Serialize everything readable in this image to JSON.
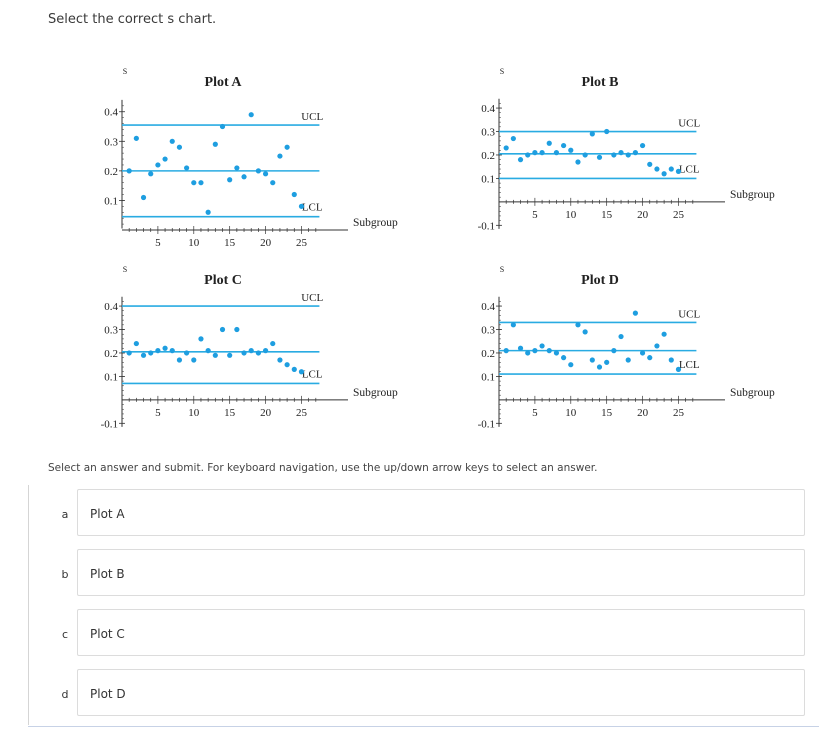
{
  "question": "Select the correct s chart.",
  "instructions": "Select an answer and submit. For keyboard navigation, use the up/down arrow keys to select an answer.",
  "plots": [
    {
      "title": "Plot A",
      "ylabel": "S",
      "xlabel": "Subgroup",
      "ucl_label": "UCL",
      "lcl_label": "LCL",
      "yticks": [
        "0.1",
        "0.2",
        "0.3",
        "0.4"
      ],
      "xticks": [
        "5",
        "10",
        "15",
        "20",
        "25"
      ]
    },
    {
      "title": "Plot B",
      "ylabel": "S",
      "xlabel": "Subgroup",
      "ucl_label": "UCL",
      "lcl_label": "LCL",
      "yticks": [
        "-0.1",
        "0.1",
        "0.2",
        "0.3",
        "0.4"
      ],
      "xticks": [
        "5",
        "10",
        "15",
        "20",
        "25"
      ]
    },
    {
      "title": "Plot C",
      "ylabel": "S",
      "xlabel": "Subgroup",
      "ucl_label": "UCL",
      "lcl_label": "LCL",
      "yticks": [
        "-0.1",
        "0.1",
        "0.2",
        "0.3",
        "0.4"
      ],
      "xticks": [
        "5",
        "10",
        "15",
        "20",
        "25"
      ]
    },
    {
      "title": "Plot D",
      "ylabel": "S",
      "xlabel": "Subgroup",
      "ucl_label": "UCL",
      "lcl_label": "LCL",
      "yticks": [
        "-0.1",
        "0.1",
        "0.2",
        "0.3",
        "0.4"
      ],
      "xticks": [
        "5",
        "10",
        "15",
        "20",
        "25"
      ]
    }
  ],
  "chart_data": [
    {
      "type": "scatter",
      "title": "Plot A",
      "xlabel": "Subgroup",
      "ylabel": "S",
      "x": [
        1,
        2,
        3,
        4,
        5,
        6,
        7,
        8,
        9,
        10,
        11,
        12,
        13,
        14,
        15,
        16,
        17,
        18,
        19,
        20,
        21,
        22,
        23,
        24,
        25
      ],
      "y": [
        0.2,
        0.31,
        0.11,
        0.19,
        0.22,
        0.24,
        0.3,
        0.28,
        0.21,
        0.16,
        0.16,
        0.06,
        0.29,
        0.35,
        0.17,
        0.21,
        0.18,
        0.39,
        0.2,
        0.19,
        0.16,
        0.25,
        0.28,
        0.12,
        0.08
      ],
      "ucl": 0.355,
      "center": 0.2,
      "lcl": 0.045,
      "xlim": [
        0,
        28
      ],
      "ylim": [
        0,
        0.46
      ]
    },
    {
      "type": "scatter",
      "title": "Plot B",
      "xlabel": "Subgroup",
      "ylabel": "S",
      "x": [
        1,
        2,
        3,
        4,
        5,
        6,
        7,
        8,
        9,
        10,
        11,
        12,
        13,
        14,
        15,
        16,
        17,
        18,
        19,
        20,
        21,
        22,
        23,
        24,
        25
      ],
      "y": [
        0.23,
        0.27,
        0.18,
        0.2,
        0.21,
        0.21,
        0.25,
        0.21,
        0.24,
        0.22,
        0.17,
        0.2,
        0.29,
        0.19,
        0.3,
        0.2,
        0.21,
        0.2,
        0.21,
        0.24,
        0.16,
        0.14,
        0.12,
        0.14,
        0.13
      ],
      "ucl": 0.3,
      "center": 0.205,
      "lcl": 0.1,
      "xlim": [
        0,
        28
      ],
      "ylim": [
        -0.12,
        0.46
      ]
    },
    {
      "type": "scatter",
      "title": "Plot C",
      "xlabel": "Subgroup",
      "ylabel": "S",
      "x": [
        1,
        2,
        3,
        4,
        5,
        6,
        7,
        8,
        9,
        10,
        11,
        12,
        13,
        14,
        15,
        16,
        17,
        18,
        19,
        20,
        21,
        22,
        23,
        24,
        25
      ],
      "y": [
        0.2,
        0.24,
        0.19,
        0.2,
        0.21,
        0.22,
        0.21,
        0.17,
        0.2,
        0.17,
        0.26,
        0.21,
        0.19,
        0.3,
        0.19,
        0.3,
        0.2,
        0.21,
        0.2,
        0.21,
        0.24,
        0.17,
        0.15,
        0.13,
        0.12
      ],
      "ucl": 0.4,
      "center": 0.205,
      "lcl": 0.07,
      "xlim": [
        0,
        28
      ],
      "ylim": [
        -0.12,
        0.46
      ]
    },
    {
      "type": "scatter",
      "title": "Plot D",
      "xlabel": "Subgroup",
      "ylabel": "S",
      "x": [
        1,
        2,
        3,
        4,
        5,
        6,
        7,
        8,
        9,
        10,
        11,
        12,
        13,
        14,
        15,
        16,
        17,
        18,
        19,
        20,
        21,
        22,
        23,
        24,
        25
      ],
      "y": [
        0.21,
        0.32,
        0.22,
        0.2,
        0.21,
        0.23,
        0.21,
        0.2,
        0.18,
        0.15,
        0.32,
        0.29,
        0.17,
        0.14,
        0.16,
        0.21,
        0.27,
        0.17,
        0.37,
        0.2,
        0.18,
        0.23,
        0.28,
        0.17,
        0.13
      ],
      "ucl": 0.33,
      "center": 0.21,
      "lcl": 0.11,
      "xlim": [
        0,
        28
      ],
      "ylim": [
        -0.12,
        0.46
      ]
    }
  ],
  "options": [
    {
      "letter": "a",
      "label": "Plot A"
    },
    {
      "letter": "b",
      "label": "Plot B"
    },
    {
      "letter": "c",
      "label": "Plot C"
    },
    {
      "letter": "d",
      "label": "Plot D"
    }
  ],
  "colors": {
    "line": "#29abe2",
    "point": "#1e9ee0",
    "axis": "#333333"
  }
}
